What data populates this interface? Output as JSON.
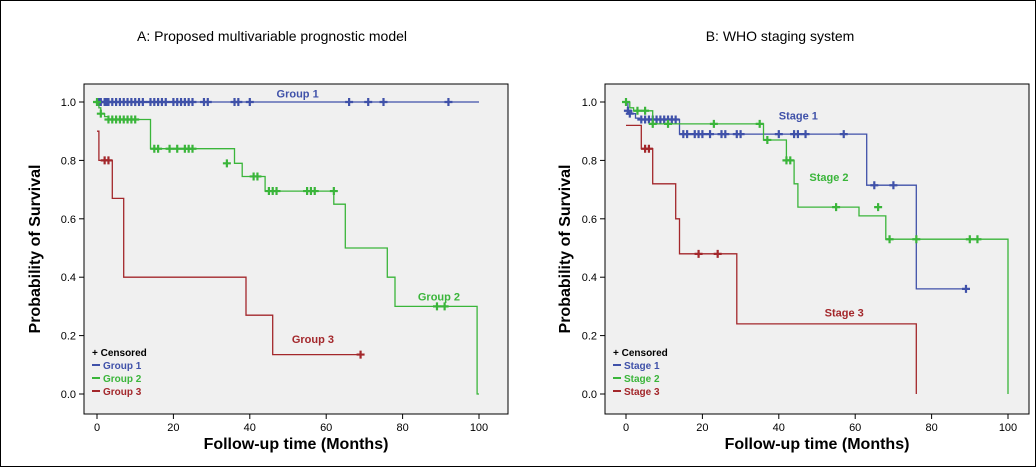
{
  "chart_data": [
    {
      "type": "line",
      "title": "A: Proposed multivariable prognostic model",
      "xlabel": "Follow-up time (Months)",
      "ylabel": "Probability of Survival",
      "xlim": [
        0,
        100
      ],
      "ylim": [
        0,
        1
      ],
      "xticks": [
        "0",
        "20",
        "40",
        "60",
        "80",
        "100"
      ],
      "yticks": [
        "0.0",
        "0.2",
        "0.4",
        "0.6",
        "0.8",
        "1.0"
      ],
      "grid": false,
      "legend_position": "bottom-left",
      "legend": [
        "+ Censored",
        "Group 1",
        "Group 2",
        "Group 3"
      ],
      "series": [
        {
          "name": "Group 1",
          "color": "#3f51a9",
          "label": "Group 1",
          "label_anchor": [
            47,
            1.015
          ],
          "steps": [
            [
              0,
              1.0
            ],
            [
              100,
              1.0
            ]
          ],
          "end_x": 93,
          "censored": [
            [
              0.5,
              1
            ],
            [
              1,
              1
            ],
            [
              2,
              1
            ],
            [
              2.5,
              1
            ],
            [
              3,
              1
            ],
            [
              4,
              1
            ],
            [
              5,
              1
            ],
            [
              6,
              1
            ],
            [
              7,
              1
            ],
            [
              8,
              1
            ],
            [
              9,
              1
            ],
            [
              10,
              1
            ],
            [
              11,
              1
            ],
            [
              12,
              1
            ],
            [
              14,
              1
            ],
            [
              15,
              1
            ],
            [
              16,
              1
            ],
            [
              17,
              1
            ],
            [
              18,
              1
            ],
            [
              20,
              1
            ],
            [
              21,
              1
            ],
            [
              22,
              1
            ],
            [
              23,
              1
            ],
            [
              24,
              1
            ],
            [
              25,
              1
            ],
            [
              28,
              1
            ],
            [
              29,
              1
            ],
            [
              36,
              1
            ],
            [
              37,
              1
            ],
            [
              40,
              1
            ],
            [
              66,
              1
            ],
            [
              71,
              1
            ],
            [
              75,
              1
            ],
            [
              92,
              1
            ]
          ]
        },
        {
          "name": "Group 2",
          "color": "#3ab53a",
          "label": "Group 2",
          "label_anchor": [
            84,
            0.32
          ],
          "steps": [
            [
              0,
              1.0
            ],
            [
              0.5,
              0.98
            ],
            [
              1,
              0.96
            ],
            [
              2,
              0.95
            ],
            [
              3,
              0.94
            ],
            [
              14,
              0.84
            ],
            [
              36,
              0.79
            ],
            [
              38,
              0.745
            ],
            [
              44,
              0.695
            ],
            [
              62,
              0.65
            ],
            [
              65,
              0.5
            ],
            [
              76,
              0.4
            ],
            [
              78,
              0.3
            ],
            [
              99.5,
              0.0
            ]
          ],
          "end_x": 100,
          "censored": [
            [
              0,
              1
            ],
            [
              1,
              0.96
            ],
            [
              3,
              0.94
            ],
            [
              4,
              0.94
            ],
            [
              5,
              0.94
            ],
            [
              6,
              0.94
            ],
            [
              7,
              0.94
            ],
            [
              8,
              0.94
            ],
            [
              9,
              0.94
            ],
            [
              10,
              0.94
            ],
            [
              15,
              0.84
            ],
            [
              16,
              0.84
            ],
            [
              19,
              0.84
            ],
            [
              21,
              0.84
            ],
            [
              23,
              0.84
            ],
            [
              24,
              0.84
            ],
            [
              25,
              0.84
            ],
            [
              34,
              0.79
            ],
            [
              41,
              0.745
            ],
            [
              42,
              0.745
            ],
            [
              45,
              0.695
            ],
            [
              46,
              0.695
            ],
            [
              47,
              0.695
            ],
            [
              55,
              0.695
            ],
            [
              56,
              0.695
            ],
            [
              57,
              0.695
            ],
            [
              62,
              0.695
            ],
            [
              89,
              0.3
            ],
            [
              91,
              0.3
            ]
          ]
        },
        {
          "name": "Group 3",
          "color": "#a3272b",
          "label": "Group 3",
          "label_anchor": [
            51,
            0.175
          ],
          "steps": [
            [
              0,
              0.9
            ],
            [
              0.5,
              0.8
            ],
            [
              4,
              0.67
            ],
            [
              7,
              0.4
            ],
            [
              39,
              0.27
            ],
            [
              46,
              0.135
            ]
          ],
          "end_x": 70,
          "censored": [
            [
              2,
              0.8
            ],
            [
              3,
              0.8
            ],
            [
              69,
              0.135
            ]
          ]
        }
      ]
    },
    {
      "type": "line",
      "title": "B: WHO staging system",
      "xlabel": "Follow-up time (Months)",
      "ylabel": "Probability of Survival",
      "xlim": [
        0,
        100
      ],
      "ylim": [
        0,
        1
      ],
      "xticks": [
        "0",
        "20",
        "40",
        "60",
        "80",
        "100"
      ],
      "yticks": [
        "0.0",
        "0.2",
        "0.4",
        "0.6",
        "0.8",
        "1.0"
      ],
      "grid": false,
      "legend_position": "bottom-left",
      "legend": [
        "+ Censored",
        "Stage 1",
        "Stage 2",
        "Stage 3"
      ],
      "series": [
        {
          "name": "Stage 1",
          "color": "#3f51a9",
          "label": "Stage 1",
          "label_anchor": [
            40,
            0.94
          ],
          "steps": [
            [
              0,
              1.0
            ],
            [
              0.5,
              0.97
            ],
            [
              1.5,
              0.96
            ],
            [
              2.5,
              0.945
            ],
            [
              3.5,
              0.94
            ],
            [
              14,
              0.89
            ],
            [
              63,
              0.715
            ],
            [
              76,
              0.36
            ]
          ],
          "end_x": 89,
          "censored": [
            [
              0.5,
              0.97
            ],
            [
              1,
              0.96
            ],
            [
              4,
              0.94
            ],
            [
              5,
              0.94
            ],
            [
              6,
              0.94
            ],
            [
              7,
              0.94
            ],
            [
              8,
              0.94
            ],
            [
              9,
              0.94
            ],
            [
              10,
              0.94
            ],
            [
              11,
              0.94
            ],
            [
              12,
              0.94
            ],
            [
              13,
              0.94
            ],
            [
              15,
              0.89
            ],
            [
              16,
              0.89
            ],
            [
              18,
              0.89
            ],
            [
              19,
              0.89
            ],
            [
              20,
              0.89
            ],
            [
              22,
              0.89
            ],
            [
              25,
              0.89
            ],
            [
              26,
              0.89
            ],
            [
              29,
              0.89
            ],
            [
              30,
              0.89
            ],
            [
              40,
              0.89
            ],
            [
              44,
              0.89
            ],
            [
              45,
              0.89
            ],
            [
              47,
              0.89
            ],
            [
              57,
              0.89
            ],
            [
              65,
              0.715
            ],
            [
              70,
              0.715
            ],
            [
              89,
              0.36
            ]
          ]
        },
        {
          "name": "Stage 2",
          "color": "#3ab53a",
          "label": "Stage 2",
          "label_anchor": [
            48,
            0.73
          ],
          "steps": [
            [
              0,
              1.0
            ],
            [
              1,
              0.98
            ],
            [
              2,
              0.97
            ],
            [
              7,
              0.925
            ],
            [
              36,
              0.87
            ],
            [
              42,
              0.8
            ],
            [
              44,
              0.72
            ],
            [
              45,
              0.64
            ],
            [
              61,
              0.61
            ],
            [
              68,
              0.53
            ],
            [
              100,
              0.0
            ]
          ],
          "end_x": 100,
          "censored": [
            [
              0,
              1
            ],
            [
              3,
              0.97
            ],
            [
              5,
              0.97
            ],
            [
              7,
              0.925
            ],
            [
              11,
              0.925
            ],
            [
              23,
              0.925
            ],
            [
              35,
              0.925
            ],
            [
              37,
              0.87
            ],
            [
              42,
              0.8
            ],
            [
              43,
              0.8
            ],
            [
              55,
              0.64
            ],
            [
              66,
              0.64
            ],
            [
              69,
              0.53
            ],
            [
              76,
              0.53
            ],
            [
              90,
              0.53
            ],
            [
              92,
              0.53
            ]
          ]
        },
        {
          "name": "Stage 3",
          "color": "#a3272b",
          "label": "Stage 3",
          "label_anchor": [
            52,
            0.265
          ],
          "steps": [
            [
              0,
              0.92
            ],
            [
              0.5,
              0.92
            ],
            [
              4,
              0.84
            ],
            [
              7,
              0.72
            ],
            [
              11,
              0.72
            ],
            [
              13,
              0.6
            ],
            [
              14,
              0.48
            ],
            [
              29,
              0.24
            ],
            [
              76,
              0.0
            ]
          ],
          "end_x": 76,
          "censored": [
            [
              5,
              0.84
            ],
            [
              6,
              0.84
            ],
            [
              19,
              0.48
            ],
            [
              24,
              0.48
            ]
          ]
        }
      ]
    }
  ]
}
